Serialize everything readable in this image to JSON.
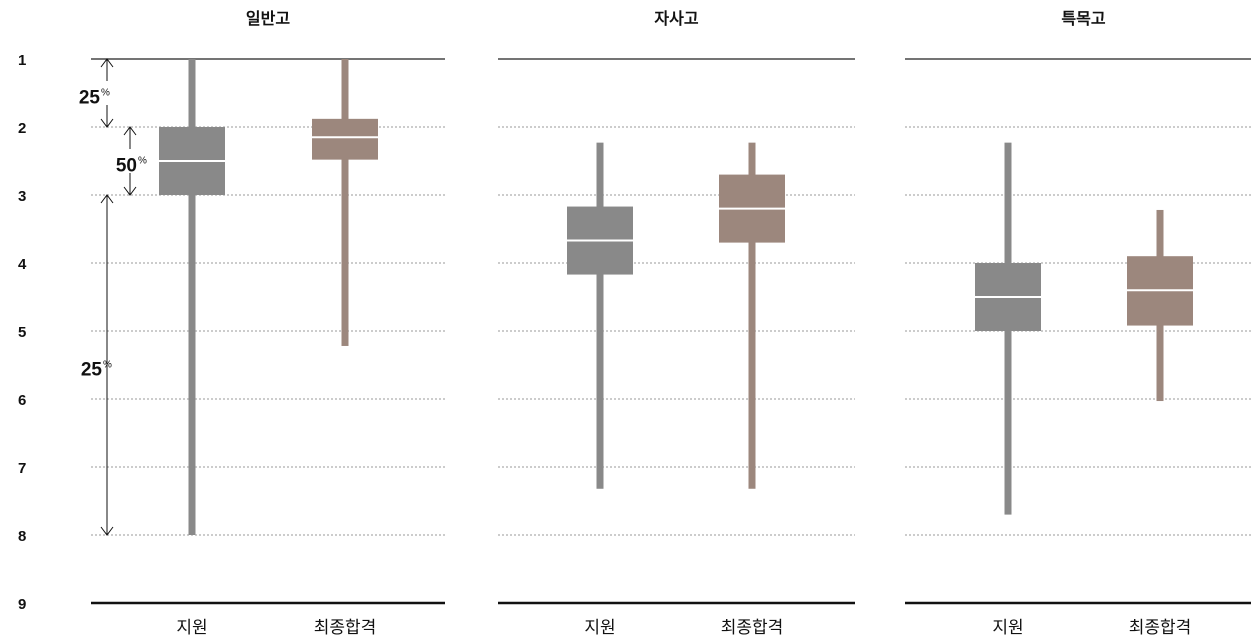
{
  "chart_data": {
    "type": "box",
    "y_axis": {
      "ticks": [
        "1",
        "2",
        "3",
        "4",
        "5",
        "6",
        "7",
        "8",
        "9"
      ],
      "ylim": [
        1,
        9
      ],
      "inverted": true,
      "grid": "dashed"
    },
    "colors": {
      "지원": "#898989",
      "최종합격": "#9C877D",
      "median": "#ffffff"
    },
    "panels": [
      {
        "title": "일반고",
        "categories": [
          "지원",
          "최종합격"
        ],
        "boxes": [
          {
            "category": "지원",
            "min": 1.0,
            "q1": 2.0,
            "median": 2.5,
            "q3": 3.0,
            "max": 8.0
          },
          {
            "category": "최종합격",
            "min": 1.0,
            "q1": 1.88,
            "median": 2.15,
            "q3": 2.48,
            "max": 5.22
          }
        ],
        "annotations": [
          {
            "label": "25",
            "unit": "%"
          },
          {
            "label": "50",
            "unit": "%"
          },
          {
            "label": "25",
            "unit": "%"
          }
        ]
      },
      {
        "title": "자사고",
        "categories": [
          "지원",
          "최종합격"
        ],
        "boxes": [
          {
            "category": "지원",
            "min": 2.23,
            "q1": 3.17,
            "median": 3.67,
            "q3": 4.17,
            "max": 7.32
          },
          {
            "category": "최종합격",
            "min": 2.23,
            "q1": 2.7,
            "median": 3.2,
            "q3": 3.7,
            "max": 7.32
          }
        ],
        "annotations": []
      },
      {
        "title": "특목고",
        "categories": [
          "지원",
          "최종합격"
        ],
        "boxes": [
          {
            "category": "지원",
            "min": 2.23,
            "q1": 4.0,
            "median": 4.5,
            "q3": 5.0,
            "max": 7.7
          },
          {
            "category": "최종합격",
            "min": 3.22,
            "q1": 3.9,
            "median": 4.4,
            "q3": 4.92,
            "max": 6.03
          }
        ],
        "annotations": []
      }
    ]
  }
}
